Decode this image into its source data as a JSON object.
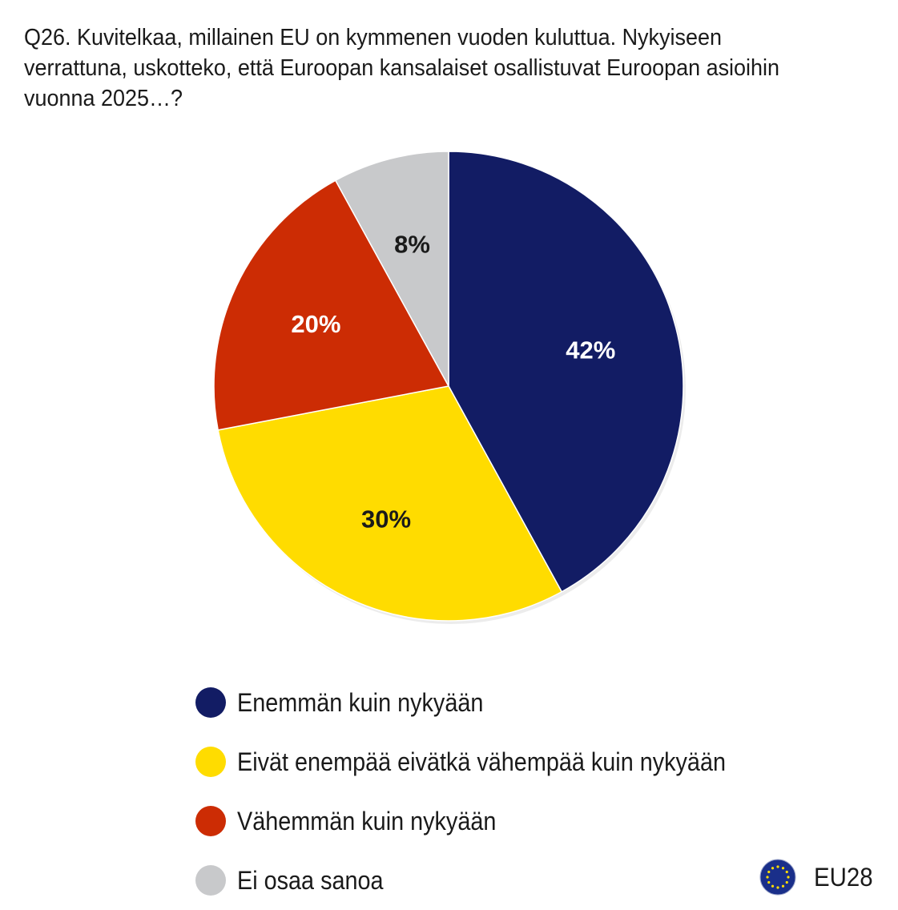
{
  "chart_data": {
    "type": "pie",
    "title": "Q26. Kuvitelkaa, millainen EU on kymmenen vuoden kuluttua. Nykyiseen verrattuna, uskotteko, että Euroopan kansalaiset osallistuvat Euroopan asioihin vuonna 2025…?",
    "slices": [
      {
        "label": "Enemmän kuin nykyään",
        "value": 42,
        "display": "42%",
        "color": "#121c64",
        "label_color": "#ffffff"
      },
      {
        "label": "Eivät enempää eivätkä vähempää kuin nykyään",
        "value": 30,
        "display": "30%",
        "color": "#ffdc00",
        "label_color": "#1a1a1a"
      },
      {
        "label": "Vähemmän kuin nykyään",
        "value": 20,
        "display": "20%",
        "color": "#cc2c04",
        "label_color": "#ffffff"
      },
      {
        "label": "Ei osaa sanoa",
        "value": 8,
        "display": "8%",
        "color": "#c8c9cb",
        "label_color": "#1a1a1a"
      }
    ],
    "legend_position": "bottom"
  },
  "region": {
    "label": "EU28",
    "flag_icon": "eu-flag-icon",
    "flag_color": "#1a2f8a",
    "star_color": "#ffdd00"
  }
}
